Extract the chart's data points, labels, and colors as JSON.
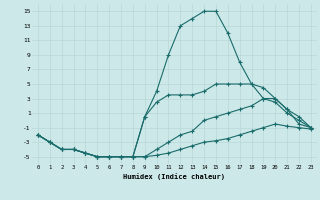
{
  "xlabel": "Humidex (Indice chaleur)",
  "bg_color": "#cce8e8",
  "grid_color": "#b8d8d8",
  "line_color": "#1a6b6b",
  "xlim": [
    -0.5,
    23.5
  ],
  "ylim": [
    -6,
    16
  ],
  "xticks": [
    0,
    1,
    2,
    3,
    4,
    5,
    6,
    7,
    8,
    9,
    10,
    11,
    12,
    13,
    14,
    15,
    16,
    17,
    18,
    19,
    20,
    21,
    22,
    23
  ],
  "yticks": [
    -5,
    -3,
    -1,
    1,
    3,
    5,
    7,
    9,
    11,
    13,
    15
  ],
  "curve1_x": [
    0,
    1,
    2,
    3,
    4,
    5,
    6,
    7,
    8,
    9,
    10,
    11,
    12,
    13,
    14,
    15,
    16,
    17,
    18,
    19,
    20,
    21,
    22,
    23
  ],
  "curve1_y": [
    -2,
    -3,
    -4,
    -4,
    -4.5,
    -5,
    -5,
    -5,
    -5,
    -5,
    -4.8,
    -4.5,
    -4,
    -3.5,
    -3,
    -2.8,
    -2.5,
    -2,
    -1.5,
    -1,
    -0.5,
    -0.8,
    -1.0,
    -1.2
  ],
  "curve2_x": [
    0,
    1,
    2,
    3,
    4,
    5,
    6,
    7,
    8,
    9,
    10,
    11,
    12,
    13,
    14,
    15,
    16,
    17,
    18,
    19,
    20,
    21,
    22,
    23
  ],
  "curve2_y": [
    -2,
    -3,
    -4,
    -4,
    -4.5,
    -5,
    -5,
    -5,
    -5,
    -5,
    -4,
    -3,
    -2,
    -1.5,
    0,
    0.5,
    1,
    1.5,
    2,
    3,
    3,
    1.5,
    0.5,
    -1
  ],
  "curve3_x": [
    0,
    1,
    2,
    3,
    4,
    5,
    6,
    7,
    8,
    9,
    10,
    11,
    12,
    13,
    14,
    15,
    16,
    17,
    18,
    19,
    20,
    21,
    22,
    23
  ],
  "curve3_y": [
    -2,
    -3,
    -4,
    -4,
    -4.5,
    -5,
    -5,
    -5,
    -5,
    0.5,
    4,
    9,
    13,
    14,
    15,
    15,
    12,
    8,
    5,
    4.5,
    3,
    1.5,
    -0.5,
    -1
  ],
  "curve4_x": [
    0,
    1,
    2,
    3,
    4,
    5,
    6,
    7,
    8,
    9,
    10,
    11,
    12,
    13,
    14,
    15,
    16,
    17,
    18,
    19,
    20,
    21,
    22,
    23
  ],
  "curve4_y": [
    -2,
    -3,
    -4,
    -4,
    -4.5,
    -5,
    -5,
    -5,
    -5,
    0.5,
    2.5,
    3.5,
    3.5,
    3.5,
    4,
    5,
    5,
    5,
    5,
    3,
    2.5,
    1,
    0,
    -1
  ]
}
